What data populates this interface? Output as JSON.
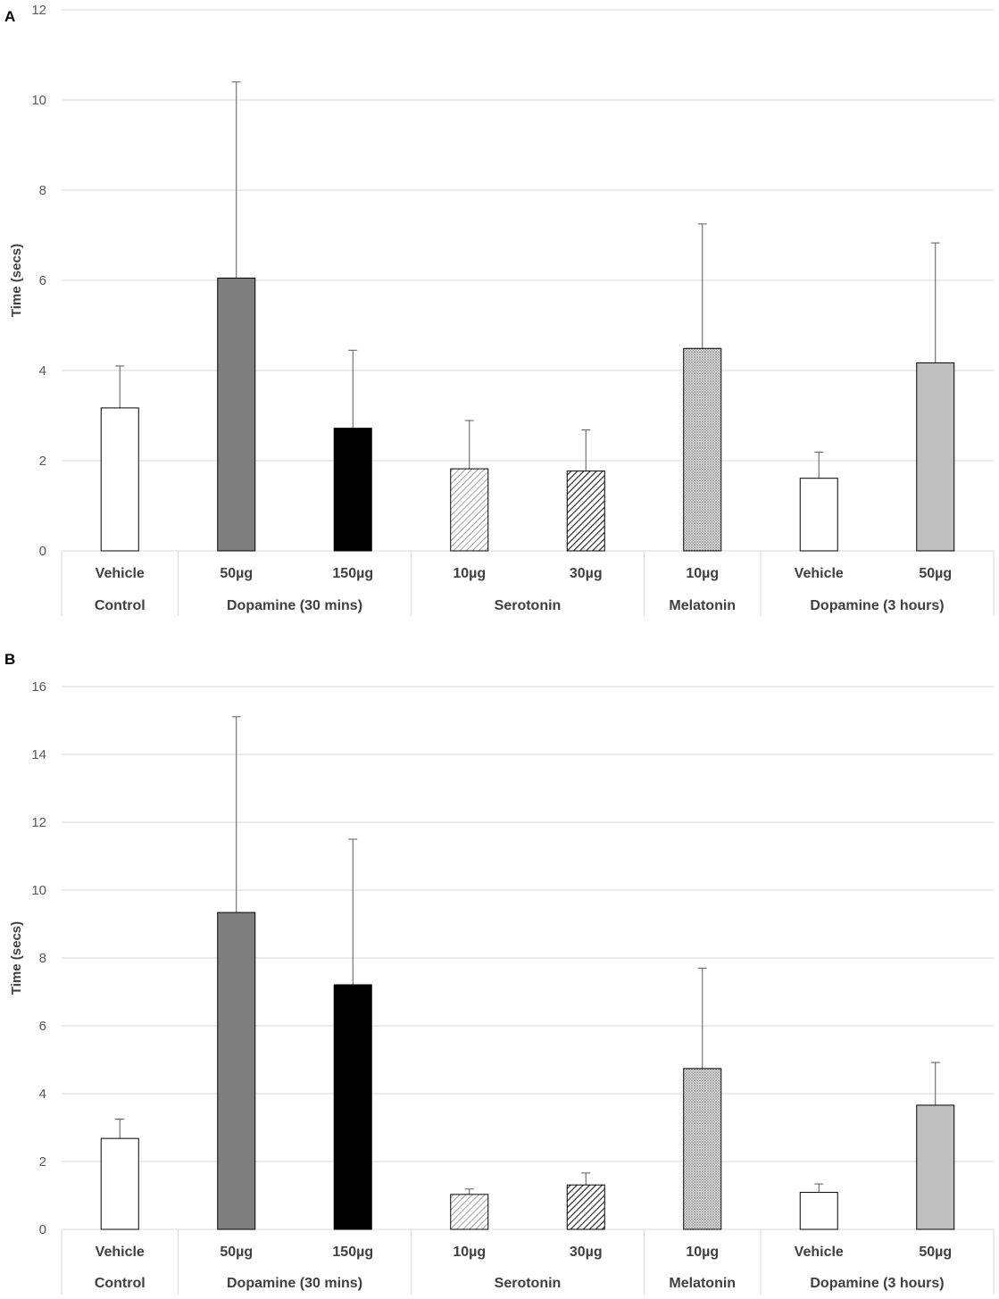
{
  "chart_data": [
    {
      "type": "bar",
      "panel": "A",
      "ylabel": "Time (secs)",
      "ylim": [
        0,
        12
      ],
      "yticks": [
        0,
        2,
        4,
        6,
        8,
        10,
        12
      ],
      "grid": true,
      "groups": [
        {
          "label": "Control",
          "count": 1
        },
        {
          "label": "Dopamine (30 mins)",
          "count": 2
        },
        {
          "label": "Serotonin",
          "count": 2
        },
        {
          "label": "Melatonin",
          "count": 1
        },
        {
          "label": "Dopamine (3 hours)",
          "count": 2
        }
      ],
      "categories": [
        "Vehicle",
        "50µg",
        "150µg",
        "10µg",
        "30µg",
        "10µg",
        "Vehicle",
        "50µg"
      ],
      "values": [
        3.17,
        6.05,
        2.72,
        1.82,
        1.77,
        4.49,
        1.61,
        4.17
      ],
      "error": [
        0.93,
        4.35,
        1.73,
        1.07,
        0.91,
        2.76,
        0.58,
        2.66
      ],
      "fills": [
        "white",
        "#7f7f7f",
        "#000000",
        "light-hatch",
        "dark-hatch",
        "dots",
        "white",
        "#bfbfbf"
      ]
    },
    {
      "type": "bar",
      "panel": "B",
      "ylabel": "Time (secs)",
      "ylim": [
        0,
        16
      ],
      "yticks": [
        0,
        2,
        4,
        6,
        8,
        10,
        12,
        14,
        16
      ],
      "grid": true,
      "groups": [
        {
          "label": "Control",
          "count": 1
        },
        {
          "label": "Dopamine (30 mins)",
          "count": 2
        },
        {
          "label": "Serotonin",
          "count": 2
        },
        {
          "label": "Melatonin",
          "count": 1
        },
        {
          "label": "Dopamine (3 hours)",
          "count": 2
        }
      ],
      "categories": [
        "Vehicle",
        "50µg",
        "150µg",
        "10µg",
        "30µg",
        "10µg",
        "Vehicle",
        "50µg"
      ],
      "values": [
        2.68,
        9.34,
        7.21,
        1.03,
        1.31,
        4.74,
        1.09,
        3.66
      ],
      "error": [
        0.57,
        5.77,
        4.29,
        0.16,
        0.35,
        2.96,
        0.25,
        1.26
      ],
      "fills": [
        "white",
        "#7f7f7f",
        "#000000",
        "light-hatch",
        "dark-hatch",
        "dots",
        "white",
        "#bfbfbf"
      ]
    }
  ]
}
